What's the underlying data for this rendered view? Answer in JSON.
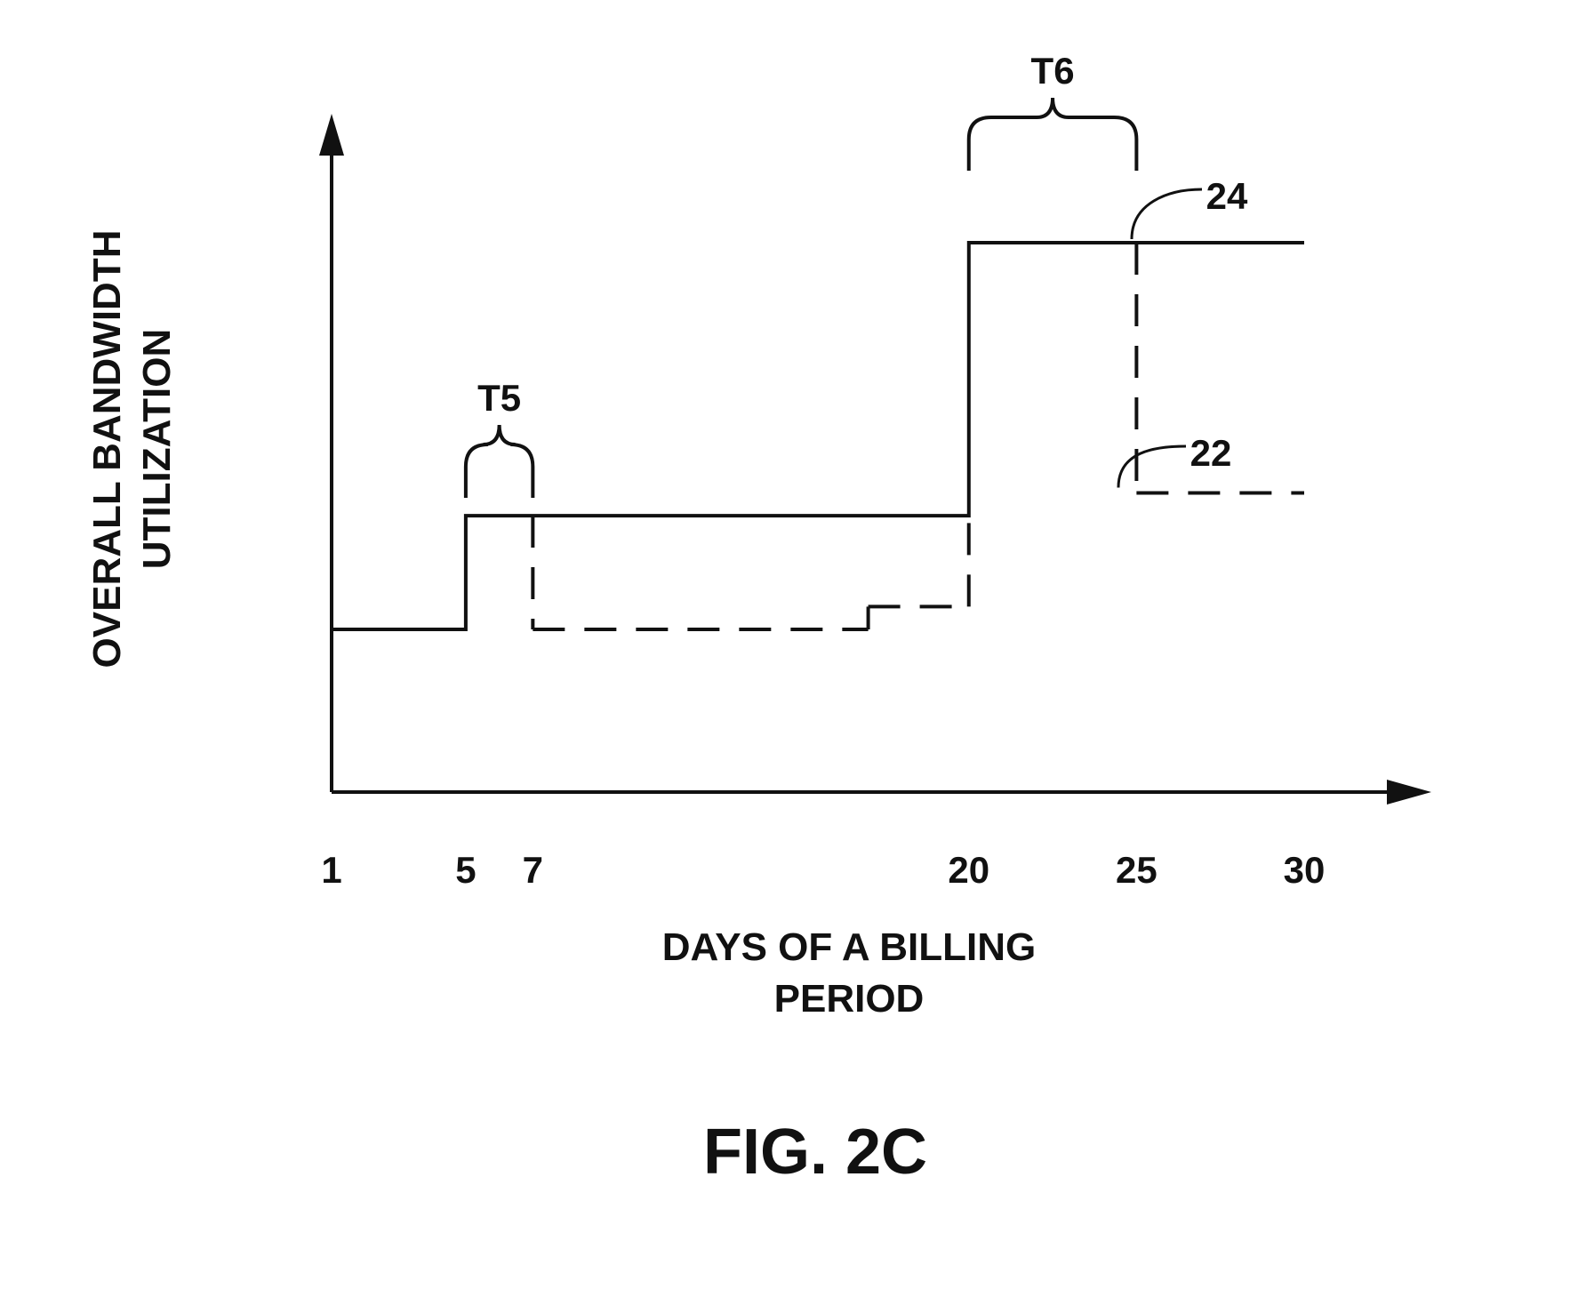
{
  "chart_data": {
    "type": "line",
    "xlabel": [
      "DAYS OF A BILLING",
      "PERIOD"
    ],
    "ylabel": [
      "OVERALL BANDWIDTH",
      "UTILIZATION"
    ],
    "xticks": [
      1,
      5,
      7,
      20,
      25,
      30
    ],
    "xlim": [
      1,
      30
    ],
    "y_numeric_scale_shown": false,
    "series": [
      {
        "label": "24",
        "style": "solid",
        "points": [
          [
            1,
            1
          ],
          [
            5,
            1
          ],
          [
            5,
            2
          ],
          [
            20,
            2
          ],
          [
            20,
            4.4
          ],
          [
            30,
            4.4
          ]
        ]
      },
      {
        "label": "22",
        "style": "dashed",
        "points": [
          [
            7,
            2
          ],
          [
            7,
            1
          ],
          [
            17,
            1
          ],
          [
            17,
            1.2
          ],
          [
            20,
            1.2
          ],
          [
            20,
            2
          ],
          [
            25,
            4.4
          ],
          [
            25,
            2.2
          ],
          [
            30,
            2.2
          ]
        ]
      }
    ],
    "annotations": [
      {
        "label": "T5",
        "x_start": 5,
        "x_end": 7
      },
      {
        "label": "T6",
        "x_start": 20,
        "x_end": 25
      }
    ]
  },
  "caption": "FIG. 2C",
  "colors": {
    "ink": "#111111",
    "background": "#ffffff"
  }
}
